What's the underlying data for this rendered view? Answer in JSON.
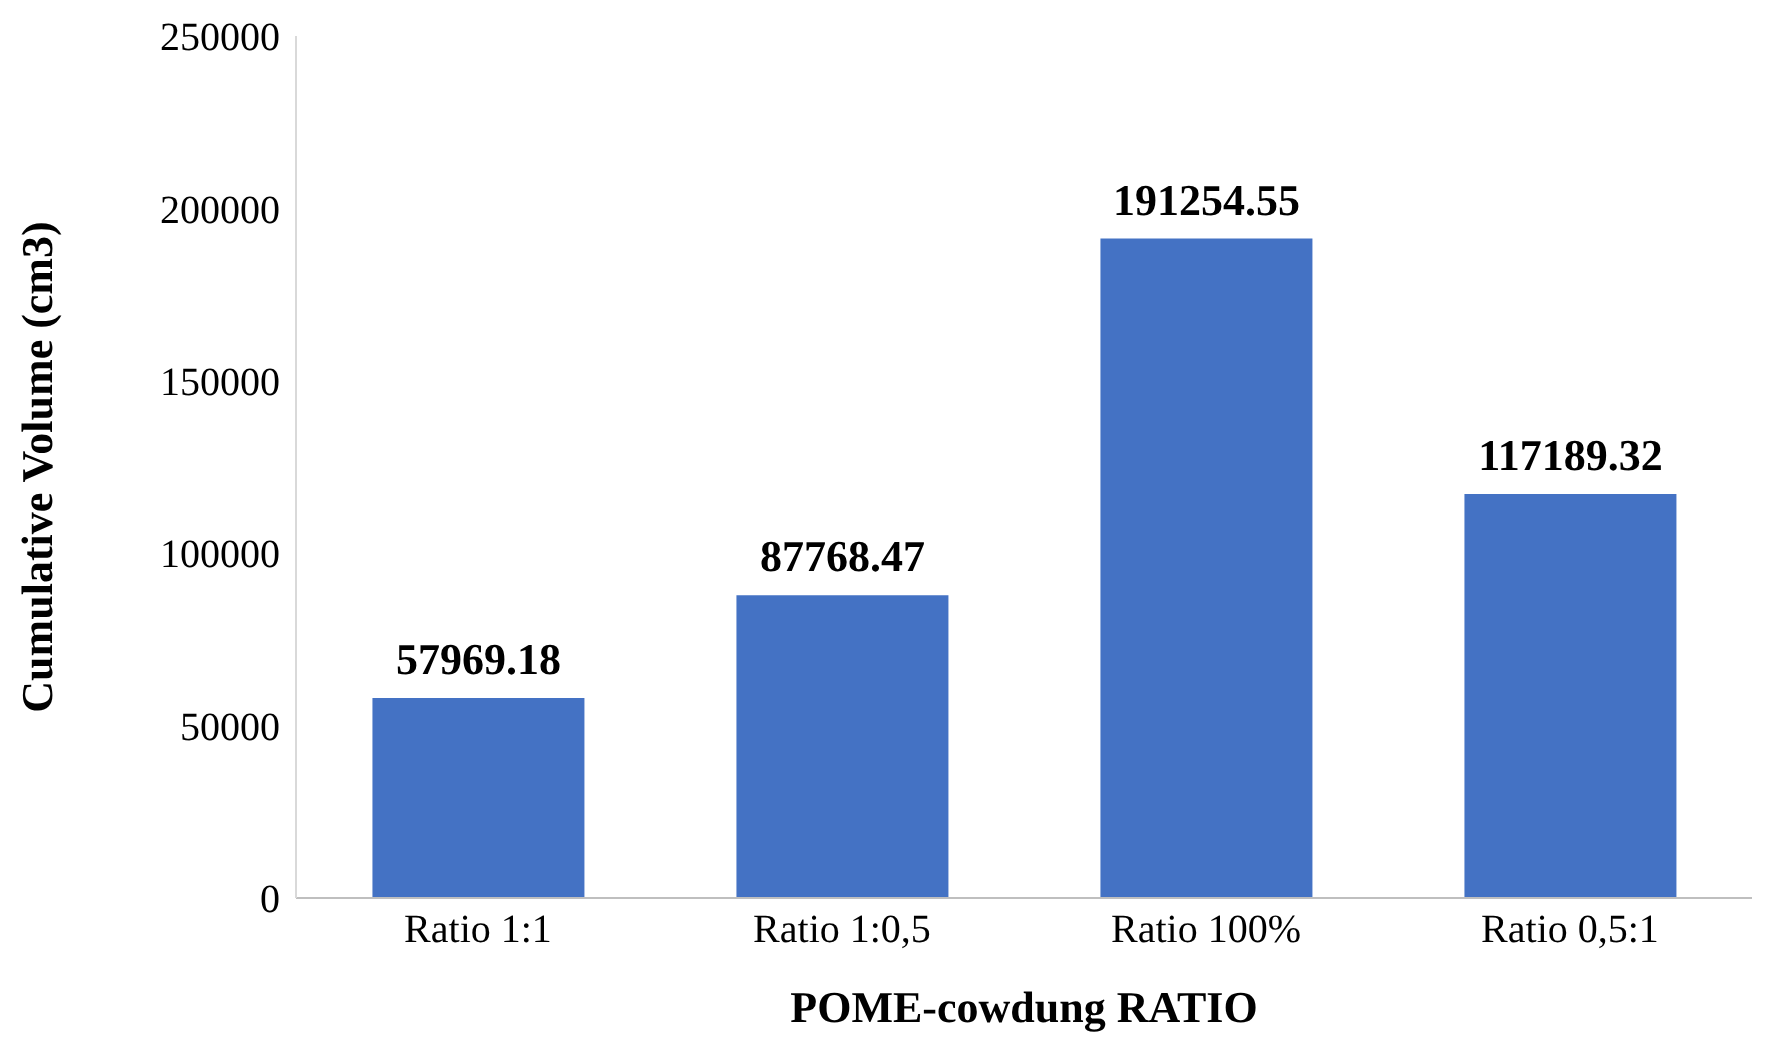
{
  "chart_data": {
    "type": "bar",
    "xlabel": "POME-cowdung RATIO",
    "ylabel": "Cumulative Volume (cm3)",
    "categories": [
      "Ratio 1:1",
      "Ratio 1:0,5",
      "Ratio 100%",
      "Ratio 0,5:1"
    ],
    "values": [
      57969.18,
      87768.47,
      191254.55,
      117189.32
    ],
    "color": "#4472c4",
    "ylim": [
      0,
      250000
    ],
    "yticks": [
      0,
      50000,
      100000,
      150000,
      200000,
      250000
    ],
    "data_labels": true
  }
}
